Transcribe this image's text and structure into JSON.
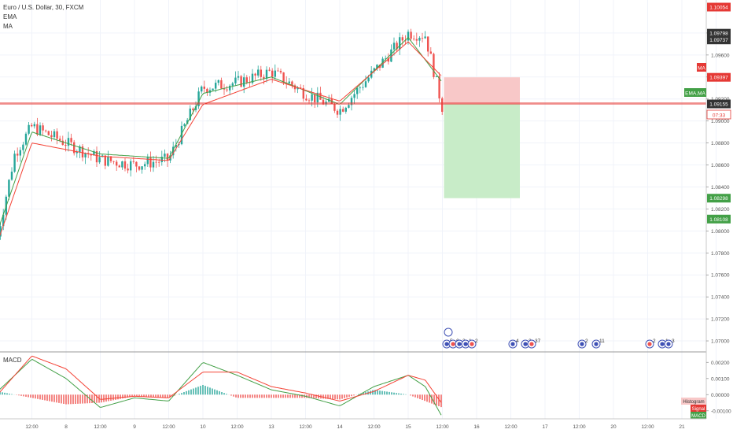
{
  "header": {
    "symbol_title": "Euro / U.S. Dollar, 30, FXCM",
    "indicator_1": "EMA",
    "indicator_2": "MA"
  },
  "macd_panel": {
    "title": "MACD"
  },
  "colors": {
    "up": "#26a69a",
    "down": "#ef5350",
    "ema": "#43a047",
    "ma": "#f44336",
    "stop_zone": "#f8c8c8",
    "target_zone": "#c8ecc8",
    "grid": "#f0f3fa",
    "axis_text": "#555555"
  },
  "price_axis": {
    "ticks": [
      "1.09800",
      "1.09600",
      "1.09400",
      "1.09200",
      "1.09000",
      "1.08800",
      "1.08600",
      "1.08400",
      "1.08200",
      "1.08000",
      "1.07800",
      "1.07600",
      "1.07400",
      "1.07200",
      "1.07000"
    ],
    "badges": [
      {
        "text": "1.10054",
        "value": 1.10054,
        "color": "#e53935"
      },
      {
        "text": "1.09798",
        "value": 1.09798,
        "color": "#333333"
      },
      {
        "text": "1.09737",
        "value": 1.09737,
        "color": "#333333"
      },
      {
        "text": "1.09397",
        "value": 1.09397,
        "color": "#e53935"
      },
      {
        "text": "1.09155",
        "value": 1.09155,
        "color": "#333333"
      },
      {
        "text": "1.08298",
        "value": 1.08298,
        "color": "#43a047"
      },
      {
        "text": "1.08108",
        "value": 1.08108,
        "color": "#43a047"
      }
    ],
    "countdown": "07:33",
    "labels": {
      "ma": "MA",
      "ema_ma": "EMA,MA"
    }
  },
  "macd_axis": {
    "ticks": [
      "0.00200",
      "0.00100",
      "0.00000",
      "-0.00100"
    ],
    "legend": {
      "histogram": "Histogram",
      "signal": "Signal",
      "macd": "MACD"
    }
  },
  "time_axis": {
    "labels": [
      "12:00",
      "8",
      "12:00",
      "9",
      "12:00",
      "10",
      "12:00",
      "13",
      "12:00",
      "14",
      "12:00",
      "15",
      "12:00",
      "16",
      "12:00",
      "17",
      "12:00",
      "20",
      "12:00",
      "21"
    ]
  },
  "events": {
    "labels": [
      "5",
      "6",
      "3",
      "1",
      "2",
      "4",
      "2",
      "37",
      "2",
      "11",
      "2",
      "1",
      "3"
    ]
  },
  "chart_data": {
    "type": "line",
    "instrument": "Euro / U.S. Dollar",
    "timeframe": "30",
    "source": "FXCM",
    "x_labels": [
      "12:00",
      "8",
      "12:00",
      "9",
      "12:00",
      "10",
      "12:00",
      "13",
      "12:00",
      "14",
      "12:00",
      "15",
      "12:00",
      "16",
      "12:00",
      "17",
      "12:00",
      "20",
      "12:00",
      "21"
    ],
    "price_ylim": [
      1.069,
      1.101
    ],
    "price_path": [
      {
        "x": "7 00:00",
        "y": 1.0795
      },
      {
        "x": "7 06:00",
        "y": 1.087
      },
      {
        "x": "7 12:00",
        "y": 1.0895
      },
      {
        "x": "8 00:00",
        "y": 1.088
      },
      {
        "x": "8 12:00",
        "y": 1.0865
      },
      {
        "x": "9 00:00",
        "y": 1.086
      },
      {
        "x": "9 12:00",
        "y": 1.0865
      },
      {
        "x": "10 00:00",
        "y": 1.093
      },
      {
        "x": "10 12:00",
        "y": 1.0935
      },
      {
        "x": "13 00:00",
        "y": 1.0945
      },
      {
        "x": "13 12:00",
        "y": 1.0925
      },
      {
        "x": "14 00:00",
        "y": 1.091
      },
      {
        "x": "14 12:00",
        "y": 1.0945
      },
      {
        "x": "15 00:00",
        "y": 1.098
      },
      {
        "x": "15 06:00",
        "y": 1.0978
      },
      {
        "x": "15 12:00",
        "y": 1.0912
      }
    ],
    "ema_path": [
      {
        "x": "7 00:00",
        "y": 1.08
      },
      {
        "x": "7 12:00",
        "y": 1.089
      },
      {
        "x": "8 12:00",
        "y": 1.087
      },
      {
        "x": "9 12:00",
        "y": 1.0866
      },
      {
        "x": "10 00:00",
        "y": 1.0925
      },
      {
        "x": "13 00:00",
        "y": 1.094
      },
      {
        "x": "14 00:00",
        "y": 1.0915
      },
      {
        "x": "15 00:00",
        "y": 1.0976
      },
      {
        "x": "15 12:00",
        "y": 1.0935
      }
    ],
    "ma_path": [
      {
        "x": "7 00:00",
        "y": 1.079
      },
      {
        "x": "7 12:00",
        "y": 1.088
      },
      {
        "x": "8 12:00",
        "y": 1.0868
      },
      {
        "x": "9 12:00",
        "y": 1.0864
      },
      {
        "x": "10 00:00",
        "y": 1.0915
      },
      {
        "x": "13 00:00",
        "y": 1.0938
      },
      {
        "x": "14 00:00",
        "y": 1.0918
      },
      {
        "x": "15 00:00",
        "y": 1.0972
      },
      {
        "x": "15 12:00",
        "y": 1.094
      }
    ],
    "current_price": 1.09155,
    "position": {
      "type": "short",
      "entry": 1.09155,
      "stop": 1.09397,
      "target": 1.08298
    },
    "macd_ylim": [
      -0.0015,
      0.0026
    ],
    "macd_path": [
      {
        "x": "7 00:00",
        "y": 0.0002
      },
      {
        "x": "7 12:00",
        "y": 0.0022
      },
      {
        "x": "8 00:00",
        "y": 0.001
      },
      {
        "x": "8 12:00",
        "y": -0.0008
      },
      {
        "x": "9 00:00",
        "y": -0.0002
      },
      {
        "x": "9 12:00",
        "y": -0.0004
      },
      {
        "x": "10 00:00",
        "y": 0.002
      },
      {
        "x": "10 12:00",
        "y": 0.0012
      },
      {
        "x": "13 00:00",
        "y": 0.0003
      },
      {
        "x": "13 12:00",
        "y": -0.0001
      },
      {
        "x": "14 00:00",
        "y": -0.0007
      },
      {
        "x": "14 12:00",
        "y": 0.0005
      },
      {
        "x": "15 00:00",
        "y": 0.0012
      },
      {
        "x": "15 06:00",
        "y": 0.0005
      },
      {
        "x": "15 12:00",
        "y": -0.0014
      }
    ],
    "signal_path": [
      {
        "x": "7 00:00",
        "y": 0.0
      },
      {
        "x": "7 12:00",
        "y": 0.0024
      },
      {
        "x": "8 00:00",
        "y": 0.0016
      },
      {
        "x": "8 12:00",
        "y": -0.0003
      },
      {
        "x": "9 00:00",
        "y": -0.0001
      },
      {
        "x": "9 12:00",
        "y": -0.0002
      },
      {
        "x": "10 00:00",
        "y": 0.0014
      },
      {
        "x": "10 12:00",
        "y": 0.0014
      },
      {
        "x": "13 00:00",
        "y": 0.0005
      },
      {
        "x": "13 12:00",
        "y": 0.0001
      },
      {
        "x": "14 00:00",
        "y": -0.0004
      },
      {
        "x": "14 12:00",
        "y": 0.0002
      },
      {
        "x": "15 00:00",
        "y": 0.0012
      },
      {
        "x": "15 06:00",
        "y": 0.0009
      },
      {
        "x": "15 12:00",
        "y": -0.0006
      }
    ]
  }
}
